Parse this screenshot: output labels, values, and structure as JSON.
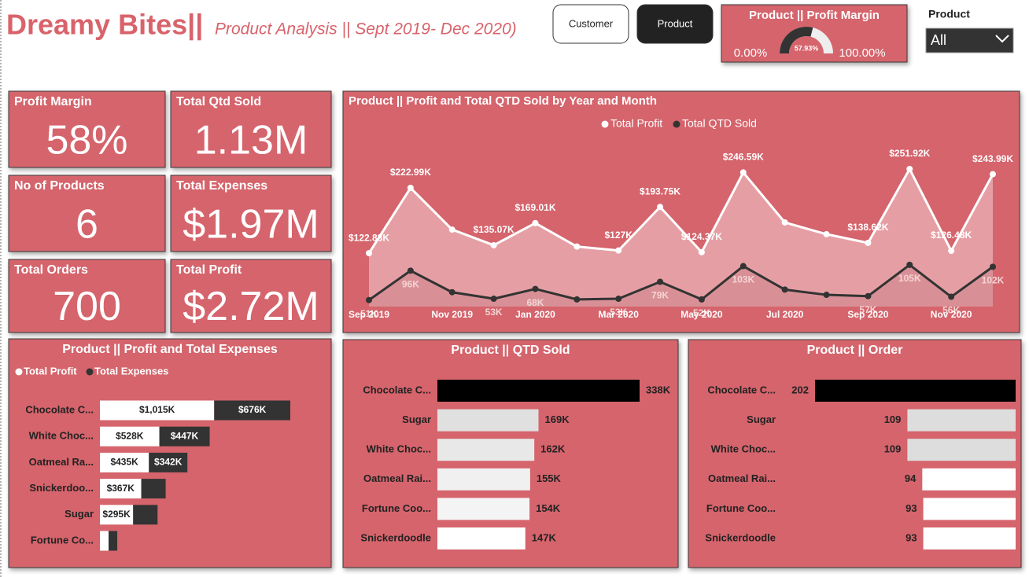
{
  "header": {
    "title": "Dreamy Bites||",
    "subtitle": "Product Analysis || Sept 2019- Dec 2020)"
  },
  "buttons": [
    "Customer",
    "Product"
  ],
  "slicer": {
    "label": "Product",
    "selected": "All"
  },
  "kpis": [
    {
      "title": "Profit Margin",
      "value": "58%"
    },
    {
      "title": "Total Qtd Sold",
      "value": "1.13M"
    },
    {
      "title": "No of Products",
      "value": "6"
    },
    {
      "title": "Total Expenses",
      "value": "$1.97M"
    },
    {
      "title": "Total Orders",
      "value": "700"
    },
    {
      "title": "Total Profit",
      "value": "$2.72M"
    }
  ],
  "chart_data": [
    {
      "type": "gauge",
      "title": "Product || Profit Margin",
      "values": [
        57.93
      ],
      "value_labels": [
        "57.93%"
      ],
      "color": "#333333",
      "ylim": [
        0,
        100
      ],
      "yticks": [
        {
          "value": 0,
          "label": "0.00%"
        },
        {
          "value": 100,
          "label": "100.00%"
        }
      ]
    },
    {
      "type": "line",
      "title": "Product || Profit and Total QTD Sold by Year and Month",
      "legend": "top",
      "categories": [
        "Sep 2019",
        null,
        "Nov 2019",
        null,
        "Jan 2020",
        null,
        "Mar 2020",
        null,
        "May 2020",
        null,
        "Jul 2020",
        null,
        "Sep 2020",
        null,
        "Nov 2020",
        null
      ],
      "series": [
        {
          "name": "Total Profit",
          "color": "#ffffff",
          "values": [
            122.83,
            222.99,
            159,
            135.07,
            169.01,
            133,
            127,
            193.75,
            124.37,
            246.59,
            170,
            152,
            138.62,
            251.92,
            126.48,
            243.99
          ],
          "value_labels": [
            "$122.83K",
            "$222.99K",
            null,
            "$135.07K",
            "$169.01K",
            null,
            "$127K",
            "$193.75K",
            "$124.37K",
            "$246.59K",
            null,
            null,
            "$138.62K",
            "$251.92K",
            "$126.48K",
            "$243.99K"
          ]
        },
        {
          "name": "Total QTD Sold",
          "color": "#333333",
          "values": [
            51,
            96,
            63,
            53,
            68,
            52,
            53,
            79,
            52,
            103,
            67,
            59,
            57,
            105,
            56,
            102
          ],
          "value_labels": [
            "51K",
            "96K",
            null,
            "53K",
            "68K",
            null,
            "53K",
            "79K",
            "52K",
            "103K",
            null,
            null,
            "57K",
            "105K",
            "56K",
            "102K"
          ]
        }
      ]
    },
    {
      "type": "stacked-bar",
      "orientation": "horizontal",
      "title": "Product || Profit and Total Expenses",
      "legend": "top-left",
      "categories": [
        "Chocolate C...",
        "White Choc...",
        "Oatmeal Ra...",
        "Snickerdoo...",
        "Sugar",
        "Fortune Co..."
      ],
      "series": [
        {
          "name": "Total Profit",
          "color": "#ffffff",
          "values": [
            1015,
            528,
            435,
            367,
            295,
            77
          ],
          "value_labels": [
            "$1,015K",
            "$528K",
            "$435K",
            "$367K",
            "$295K",
            null
          ]
        },
        {
          "name": "Total Expenses",
          "color": "#333333",
          "values": [
            676,
            447,
            342,
            217,
            217,
            77
          ],
          "value_labels": [
            "$676K",
            "$447K",
            "$342K",
            null,
            null,
            null
          ]
        }
      ]
    },
    {
      "type": "bar",
      "orientation": "horizontal",
      "title": "Product || QTD Sold",
      "categories": [
        "Chocolate C...",
        "Sugar",
        "White Choc...",
        "Oatmeal Rai...",
        "Fortune Coo...",
        "Snickerdoodle"
      ],
      "values": [
        338,
        169,
        162,
        155,
        154,
        147
      ],
      "value_labels": [
        "338K",
        "169K",
        "162K",
        "155K",
        "154K",
        "147K"
      ],
      "colors": [
        "#000000",
        "#e0e0e0",
        "#e8e8e8",
        "#f0f0f0",
        "#f4f4f4",
        "#ffffff"
      ]
    },
    {
      "type": "bar",
      "orientation": "horizontal",
      "reversed": true,
      "title": "Product || Order",
      "categories": [
        "Chocolate C...",
        "Sugar",
        "White Choc...",
        "Oatmeal Rai...",
        "Fortune Coo...",
        "Snickerdoodle"
      ],
      "values": [
        202,
        109,
        109,
        94,
        93,
        93
      ],
      "colors": [
        "#000000",
        "#dddddd",
        "#dddddd",
        "#ffffff",
        "#ffffff",
        "#ffffff"
      ]
    }
  ]
}
